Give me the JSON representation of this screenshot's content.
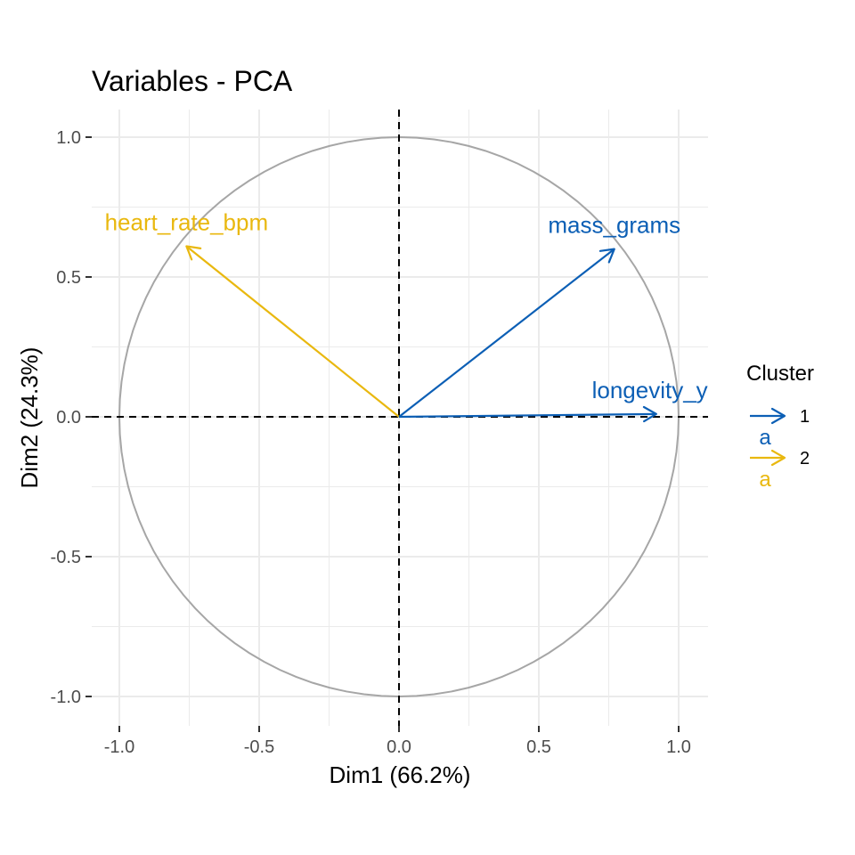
{
  "chart_data": {
    "type": "pca-variable-correlation-circle",
    "title": "Variables - PCA",
    "xlabel": "Dim1 (66.2%)",
    "ylabel": "Dim2 (24.3%)",
    "xlim": [
      -1.1,
      1.1
    ],
    "ylim": [
      -1.1,
      1.1
    ],
    "x_ticks": [
      -1.0,
      -0.5,
      0.0,
      0.5,
      1.0
    ],
    "y_ticks": [
      -1.0,
      -0.5,
      0.0,
      0.5,
      1.0
    ],
    "x_tick_labels": [
      "-1.0",
      "-0.5",
      "0.0",
      "0.5",
      "1.0"
    ],
    "y_tick_labels": [
      "-1.0",
      "-0.5",
      "0.0",
      "0.5",
      "1.0"
    ],
    "grid": true,
    "unit_circle": true,
    "reference_lines": [
      0,
      0
    ],
    "variables": [
      {
        "label": "heart_rate_bpm",
        "x": -0.76,
        "y": 0.61,
        "cluster": "2"
      },
      {
        "label": "mass_grams",
        "x": 0.77,
        "y": 0.6,
        "cluster": "1"
      },
      {
        "label": "longevity_ye",
        "x": 0.92,
        "y": 0.01,
        "cluster": "1"
      }
    ],
    "legend": {
      "title": "Cluster",
      "placement": "right",
      "entries": [
        {
          "label": "1",
          "key_text": "a",
          "color": "#0c5fb5"
        },
        {
          "label": "2",
          "key_text": "a",
          "color": "#e9b80f"
        }
      ]
    },
    "colors": {
      "1": "#0c5fb5",
      "2": "#e9b80f",
      "circle": "#a6a6a6",
      "grid": "#ebebeb",
      "reference": "#000000"
    }
  }
}
